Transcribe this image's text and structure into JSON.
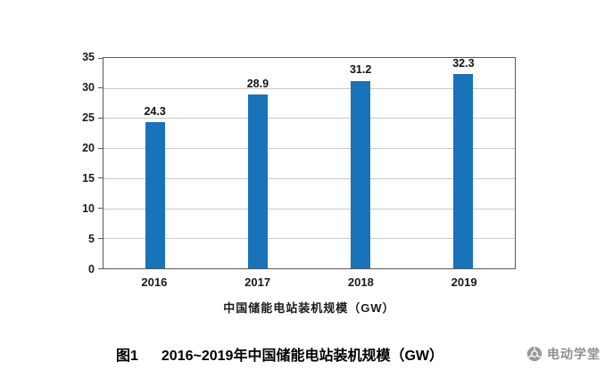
{
  "chart_data": {
    "type": "bar",
    "title": "",
    "categories": [
      "2016",
      "2017",
      "2018",
      "2019"
    ],
    "values": [
      24.3,
      28.9,
      31.2,
      32.3
    ],
    "data_labels": [
      "24.3",
      "28.9",
      "31.2",
      "32.3"
    ],
    "xlabel": "中国储能电站装机规模（GW）",
    "ylabel": "",
    "ylim": [
      0,
      35
    ],
    "ytick_step": 5,
    "yticks": [
      0,
      5,
      10,
      15,
      20,
      25,
      30,
      35
    ],
    "grid": true,
    "legend": "none",
    "bar_color": "#1873b8",
    "gridline_color": "#c9c9c9",
    "axis_color": "#595959"
  },
  "caption": {
    "figure_label": "图1",
    "text": "2016~2019年中国储能电站装机规模（GW）"
  },
  "watermark": {
    "text": "电动学堂",
    "color": "#8f8f8f"
  }
}
